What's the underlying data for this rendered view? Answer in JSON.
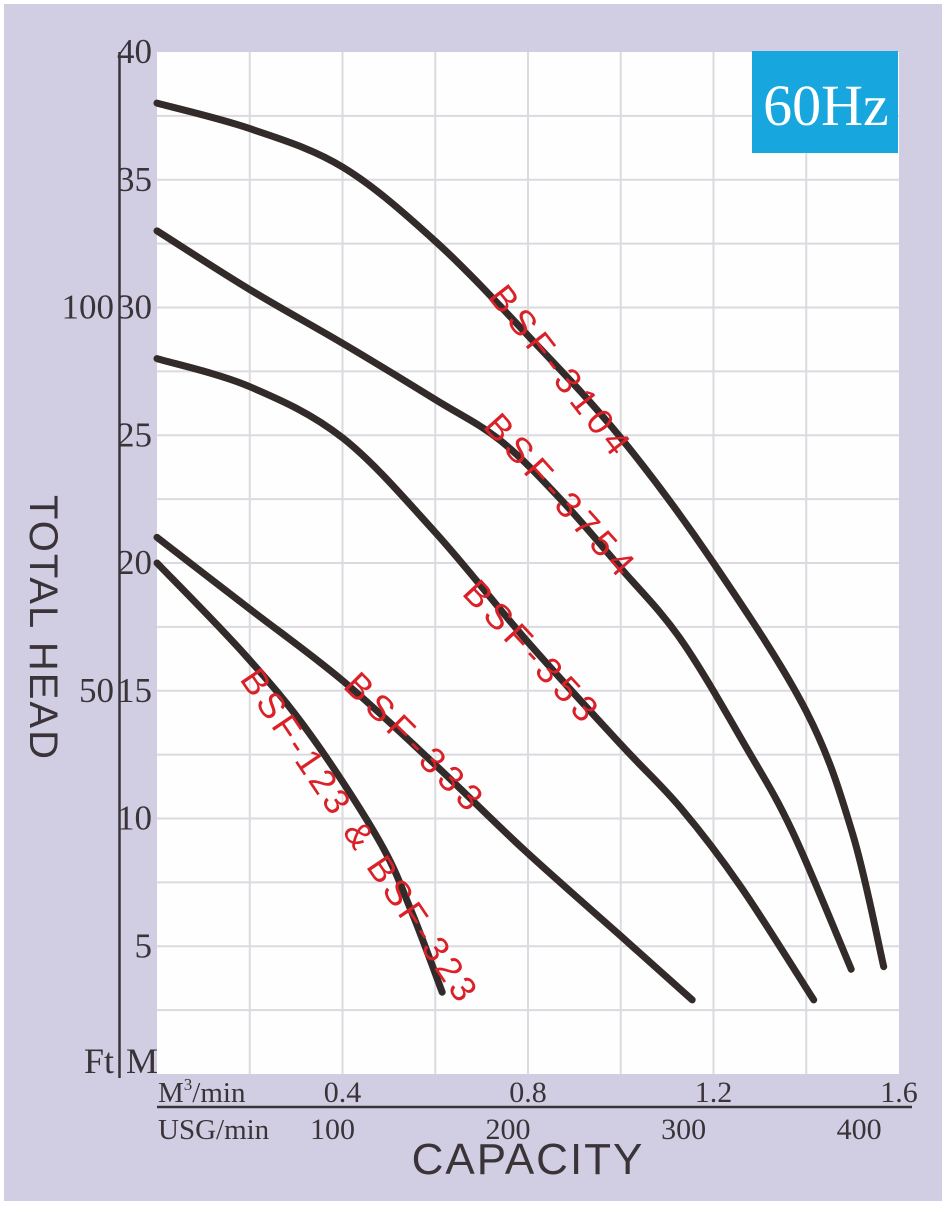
{
  "colors": {
    "panel_bg": "#d1cee3",
    "plot_bg": "#fefefe",
    "gridline": "#dbdae0",
    "curve": "#332a2a",
    "series_label": "#db2128",
    "axis_text": "#3a3439",
    "badge_bg": "#17a6dd",
    "badge_text": "#ffffff"
  },
  "badge": {
    "label": "60Hz"
  },
  "y_axis": {
    "title": "TOTAL HEAD",
    "ft_unit": "Ft",
    "m_unit": "M",
    "m_ticks": [
      40,
      35,
      30,
      25,
      20,
      15,
      10,
      5
    ],
    "ft_ticks": [
      {
        "label": "100",
        "at_m": 30
      },
      {
        "label": "50",
        "at_m": 15
      }
    ]
  },
  "x_axis": {
    "title": "CAPACITY",
    "m3_row": {
      "unit_base": "M",
      "unit_sup": "3",
      "unit_suffix": "/min",
      "ticks": [
        {
          "label": "0.4",
          "value": 0.4
        },
        {
          "label": "0.8",
          "value": 0.8
        },
        {
          "label": "1.2",
          "value": 1.2
        },
        {
          "label": "1.6",
          "value": 1.6
        }
      ]
    },
    "usg_row": {
      "unit": "USG/min",
      "ticks": [
        {
          "label": "100",
          "m3_value": 0.3785
        },
        {
          "label": "200",
          "m3_value": 0.757
        },
        {
          "label": "300",
          "m3_value": 1.1355
        },
        {
          "label": "400",
          "m3_value": 1.514
        }
      ]
    }
  },
  "chart_data": {
    "type": "line",
    "title": "Pump performance curves, 60Hz",
    "xlabel": "CAPACITY",
    "ylabel": "TOTAL HEAD",
    "x_units": [
      "M3/min",
      "USG/min"
    ],
    "y_units": [
      "M",
      "Ft"
    ],
    "xlim": [
      0,
      1.6
    ],
    "ylim": [
      0,
      40
    ],
    "x_gridstep": 0.2,
    "y_gridstep": 2.5,
    "grid": true,
    "legend_position": "labels-along-curves",
    "series": [
      {
        "name": "BSF-3104",
        "points": [
          [
            0,
            38
          ],
          [
            0.2,
            37
          ],
          [
            0.4,
            35.5
          ],
          [
            0.6,
            32.6
          ],
          [
            0.8,
            28.9
          ],
          [
            1.0,
            24.9
          ],
          [
            1.2,
            20.0
          ],
          [
            1.4,
            14.2
          ],
          [
            1.5,
            9.4
          ],
          [
            1.567,
            4.2
          ]
        ]
      },
      {
        "name": "BSF-3754",
        "points": [
          [
            0,
            33
          ],
          [
            0.2,
            30.7
          ],
          [
            0.4,
            28.6
          ],
          [
            0.6,
            26.4
          ],
          [
            0.74,
            24.8
          ],
          [
            0.87,
            22.5
          ],
          [
            1.0,
            19.8
          ],
          [
            1.13,
            17.0
          ],
          [
            1.27,
            12.8
          ],
          [
            1.37,
            9.5
          ],
          [
            1.497,
            4.1
          ]
        ]
      },
      {
        "name": "BSF-353",
        "points": [
          [
            0,
            28
          ],
          [
            0.2,
            26.9
          ],
          [
            0.4,
            24.9
          ],
          [
            0.6,
            21.2
          ],
          [
            0.8,
            16.9
          ],
          [
            1.0,
            12.9
          ],
          [
            1.13,
            10.4
          ],
          [
            1.26,
            7.3
          ],
          [
            1.416,
            2.9
          ]
        ]
      },
      {
        "name": "BSF-333",
        "points": [
          [
            0,
            21
          ],
          [
            0.2,
            18.2
          ],
          [
            0.4,
            15.4
          ],
          [
            0.6,
            12.1
          ],
          [
            0.79,
            8.8
          ],
          [
            1.0,
            5.4
          ],
          [
            1.154,
            2.9
          ]
        ]
      },
      {
        "name": "BSF-123 & BSF-323",
        "points": [
          [
            0,
            20
          ],
          [
            0.19,
            16.4
          ],
          [
            0.33,
            13.3
          ],
          [
            0.48,
            9.1
          ],
          [
            0.55,
            6.3
          ],
          [
            0.615,
            3.2
          ]
        ]
      }
    ]
  }
}
